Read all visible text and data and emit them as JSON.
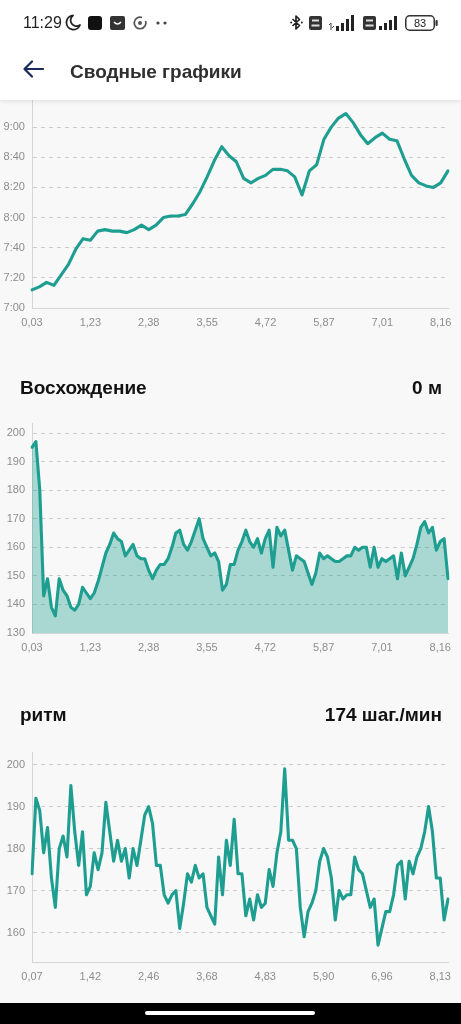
{
  "chart_data": [
    {
      "type": "line",
      "title": "Сводные графики",
      "annotations": [
        "11:29",
        "83"
      ],
      "categories": [
        "0,03",
        null,
        null,
        null,
        null,
        null,
        null,
        null,
        "1,23",
        null,
        null,
        null,
        null,
        null,
        null,
        null,
        "2,38",
        null,
        null,
        null,
        null,
        null,
        null,
        null,
        "3,55",
        null,
        null,
        null,
        null,
        null,
        null,
        null,
        "4,72",
        null,
        null,
        null,
        null,
        null,
        null,
        null,
        "5,87",
        null,
        null,
        null,
        null,
        null,
        null,
        null,
        "7,01",
        null,
        null,
        null,
        null,
        null,
        null,
        null,
        "8,16",
        null
      ],
      "values": [
        432,
        434,
        437,
        435,
        442,
        449,
        459,
        466,
        465,
        471,
        472,
        471,
        471,
        470,
        472,
        475,
        472,
        475,
        480,
        481,
        481,
        482,
        489,
        497,
        507,
        518,
        527,
        521,
        517,
        506,
        503,
        506,
        508,
        512,
        512,
        511,
        507,
        495,
        511,
        515,
        532,
        540,
        546,
        549,
        543,
        535,
        529,
        533,
        536,
        532,
        531,
        519,
        508,
        503,
        501,
        500,
        503,
        511
      ],
      "color": "#1e9e90",
      "ylim": [
        420,
        558
      ],
      "yticks": [
        {
          "value": 420,
          "label": "7:00"
        },
        {
          "value": 440,
          "label": "7:20"
        },
        {
          "value": 460,
          "label": "7:40"
        },
        {
          "value": 480,
          "label": "8:00"
        },
        {
          "value": 500,
          "label": "8:20"
        },
        {
          "value": 520,
          "label": "8:40"
        },
        {
          "value": 540,
          "label": "9:00"
        }
      ],
      "grid": "y",
      "marker": "none",
      "line_style": "solid"
    },
    {
      "type": "area",
      "title": "Восхождение",
      "subtitle": "0 м",
      "categories": [
        "0,03",
        null,
        null,
        null,
        null,
        null,
        null,
        null,
        null,
        null,
        null,
        null,
        null,
        null,
        null,
        "1,23",
        null,
        null,
        null,
        null,
        null,
        null,
        null,
        null,
        null,
        null,
        null,
        null,
        null,
        null,
        "2,38",
        null,
        null,
        null,
        null,
        null,
        null,
        null,
        null,
        null,
        null,
        null,
        null,
        null,
        null,
        "3,55",
        null,
        null,
        null,
        null,
        null,
        null,
        null,
        null,
        null,
        null,
        null,
        null,
        null,
        null,
        "4,72",
        null,
        null,
        null,
        null,
        null,
        null,
        null,
        null,
        null,
        null,
        null,
        null,
        null,
        null,
        "5,87",
        null,
        null,
        null,
        null,
        null,
        null,
        null,
        null,
        null,
        null,
        null,
        null,
        null,
        null,
        "7,01",
        null,
        null,
        null,
        null,
        null,
        null,
        null,
        null,
        null,
        null,
        null,
        null,
        null,
        null,
        "8,16",
        null,
        null
      ],
      "values": [
        195,
        197,
        180,
        143,
        149,
        139,
        136,
        149,
        145,
        143,
        139,
        138,
        140,
        146,
        144,
        142,
        144,
        148,
        153,
        158,
        161,
        165,
        163,
        162,
        157,
        159,
        161,
        157,
        156,
        156,
        152,
        149,
        152,
        154,
        154,
        156,
        160,
        165,
        166,
        161,
        159,
        162,
        166,
        170,
        163,
        160,
        157,
        158,
        155,
        145,
        147,
        154,
        154,
        159,
        162,
        166,
        162,
        160,
        163,
        158,
        163,
        166,
        153,
        167,
        164,
        166,
        159,
        152,
        157,
        156,
        155,
        151,
        147,
        151,
        158,
        156,
        157,
        156,
        155,
        155,
        156,
        157,
        157,
        160,
        159,
        160,
        160,
        153,
        160,
        153,
        156,
        155,
        156,
        157,
        149,
        158,
        150,
        153,
        156,
        161,
        167,
        169,
        165,
        167,
        159,
        162,
        163,
        149
      ],
      "color": "#1e9e90",
      "ylim": [
        130,
        203.5
      ],
      "yticks": [
        130,
        140,
        150,
        160,
        170,
        180,
        190,
        200
      ],
      "grid": "y",
      "marker": "none",
      "line_style": "solid"
    },
    {
      "type": "line",
      "title": "ритм",
      "subtitle": "174 шаг./мин",
      "categories": [
        "0,07",
        null,
        null,
        null,
        null,
        null,
        null,
        null,
        null,
        null,
        null,
        null,
        null,
        null,
        null,
        "1,42",
        null,
        null,
        null,
        null,
        null,
        null,
        null,
        null,
        null,
        null,
        null,
        null,
        null,
        null,
        "2,46",
        null,
        null,
        null,
        null,
        null,
        null,
        null,
        null,
        null,
        null,
        null,
        null,
        null,
        null,
        "3,68",
        null,
        null,
        null,
        null,
        null,
        null,
        null,
        null,
        null,
        null,
        null,
        null,
        null,
        null,
        "4,83",
        null,
        null,
        null,
        null,
        null,
        null,
        null,
        null,
        null,
        null,
        null,
        null,
        null,
        null,
        "5,90",
        null,
        null,
        null,
        null,
        null,
        null,
        null,
        null,
        null,
        null,
        null,
        null,
        null,
        null,
        "6,96",
        null,
        null,
        null,
        null,
        null,
        null,
        null,
        null,
        null,
        null,
        null,
        null,
        null,
        null,
        "8,13",
        null,
        null
      ],
      "values": [
        174,
        192,
        189,
        179,
        185,
        173,
        166,
        180,
        183,
        178,
        195,
        184,
        176,
        184,
        169,
        171,
        179,
        175,
        179,
        191,
        184,
        177,
        182,
        177,
        180,
        173,
        180,
        176,
        182,
        188,
        190,
        186,
        176,
        176,
        169,
        167,
        169,
        170,
        161,
        167,
        174,
        172,
        176,
        173,
        174,
        166,
        164,
        162,
        178,
        169,
        182,
        176,
        187,
        174,
        174,
        164,
        168,
        163,
        169,
        166,
        167,
        175,
        171,
        179,
        184,
        199,
        182,
        182,
        180,
        166,
        159,
        165,
        167,
        170,
        177,
        180,
        178,
        173,
        163,
        170,
        168,
        169,
        169,
        178,
        175,
        174,
        170,
        166,
        168,
        157,
        161,
        165,
        165,
        169,
        176,
        177,
        168,
        177,
        174,
        178,
        180,
        184,
        190,
        184,
        173,
        173,
        163,
        168
      ],
      "color": "#1e9e90",
      "ylim": [
        153,
        203
      ],
      "yticks": [
        160,
        170,
        180,
        190,
        200
      ],
      "grid": "y",
      "marker": "none",
      "line_style": "solid"
    }
  ]
}
